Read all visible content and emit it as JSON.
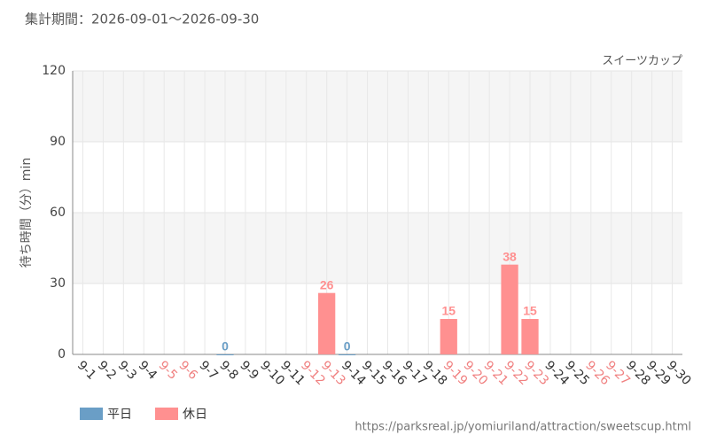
{
  "chart_data": {
    "type": "bar",
    "title": "集計期間：2026-09-01～2026-09-30",
    "subtitle": "スイーツカップ",
    "y_label": "待ち時間（分）min",
    "source": "https://parksreal.jp/yomiuriland/attraction/sweetscup.html",
    "categories": [
      "9-1",
      "9-2",
      "9-3",
      "9-4",
      "9-5",
      "9-6",
      "9-7",
      "9-8",
      "9-9",
      "9-10",
      "9-11",
      "9-12",
      "9-13",
      "9-14",
      "9-15",
      "9-16",
      "9-17",
      "9-18",
      "9-19",
      "9-20",
      "9-21",
      "9-22",
      "9-23",
      "9-24",
      "9-25",
      "9-26",
      "9-27",
      "9-28",
      "9-29",
      "9-30"
    ],
    "category_colors": [
      "#333",
      "#333",
      "#333",
      "#333",
      "#f08080",
      "#f08080",
      "#333",
      "#333",
      "#333",
      "#333",
      "#333",
      "#f08080",
      "#f08080",
      "#333",
      "#333",
      "#333",
      "#333",
      "#333",
      "#f08080",
      "#f08080",
      "#f08080",
      "#f08080",
      "#f08080",
      "#333",
      "#333",
      "#f08080",
      "#f08080",
      "#333",
      "#333",
      "#333"
    ],
    "series": [
      {
        "name": "平日",
        "color": "#6a9ec6",
        "values": [
          null,
          null,
          null,
          null,
          null,
          null,
          null,
          0,
          null,
          null,
          null,
          null,
          null,
          0,
          null,
          null,
          null,
          null,
          null,
          null,
          null,
          null,
          null,
          null,
          null,
          null,
          null,
          null,
          null,
          null
        ]
      },
      {
        "name": "休日",
        "color": "#ff9090",
        "values": [
          null,
          null,
          null,
          null,
          null,
          null,
          null,
          null,
          null,
          null,
          null,
          null,
          26,
          null,
          null,
          null,
          null,
          null,
          15,
          null,
          null,
          38,
          15,
          null,
          null,
          null,
          null,
          null,
          null,
          null
        ]
      }
    ],
    "ylim": [
      0,
      120
    ],
    "yticks": [
      0,
      30,
      60,
      90,
      120
    ],
    "grid": true
  }
}
